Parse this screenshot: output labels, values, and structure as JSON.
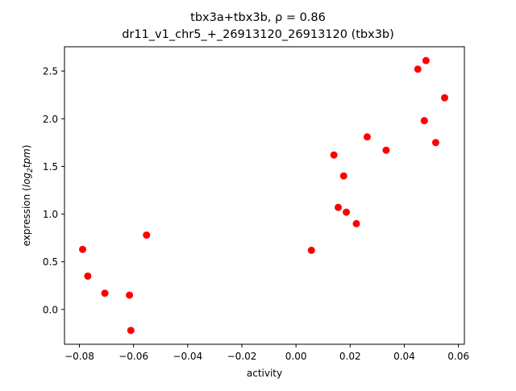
{
  "chart_data": {
    "type": "scatter",
    "title_line1_prefix": "tbx3a+tbx3b, ",
    "title_line1_rho": "ρ = 0.86",
    "title_line2": "dr11_v1_chr5_+_26913120_26913120 (tbx3b)",
    "xlabel": "activity",
    "ylabel_prefix": "expression (",
    "ylabel_math": "log",
    "ylabel_sub": "2",
    "ylabel_math2": "tpm",
    "ylabel_suffix": ")",
    "xlim": [
      -0.0855,
      0.0622
    ],
    "ylim": [
      -0.365,
      2.755
    ],
    "x_ticks": [
      -0.08,
      -0.06,
      -0.04,
      -0.02,
      0.0,
      0.02,
      0.04,
      0.06
    ],
    "x_tick_labels": [
      "−0.08",
      "−0.06",
      "−0.04",
      "−0.02",
      "0.00",
      "0.02",
      "0.04",
      "0.06"
    ],
    "y_ticks": [
      0.0,
      0.5,
      1.0,
      1.5,
      2.0,
      2.5
    ],
    "y_tick_labels": [
      "0.0",
      "0.5",
      "1.0",
      "1.5",
      "2.0",
      "2.5"
    ],
    "marker_color": "#ff0000",
    "points": [
      {
        "x": -0.0788,
        "y": 0.63
      },
      {
        "x": -0.0769,
        "y": 0.35
      },
      {
        "x": -0.0706,
        "y": 0.17
      },
      {
        "x": -0.0615,
        "y": 0.15
      },
      {
        "x": -0.061,
        "y": -0.22
      },
      {
        "x": -0.0552,
        "y": 0.78
      },
      {
        "x": 0.0057,
        "y": 0.62
      },
      {
        "x": 0.014,
        "y": 1.62
      },
      {
        "x": 0.0156,
        "y": 1.07
      },
      {
        "x": 0.0176,
        "y": 1.4
      },
      {
        "x": 0.0186,
        "y": 1.02
      },
      {
        "x": 0.0223,
        "y": 0.9
      },
      {
        "x": 0.0263,
        "y": 1.81
      },
      {
        "x": 0.0333,
        "y": 1.67
      },
      {
        "x": 0.045,
        "y": 2.52
      },
      {
        "x": 0.0474,
        "y": 1.98
      },
      {
        "x": 0.048,
        "y": 2.61
      },
      {
        "x": 0.0516,
        "y": 1.75
      },
      {
        "x": 0.0549,
        "y": 2.22
      }
    ]
  }
}
